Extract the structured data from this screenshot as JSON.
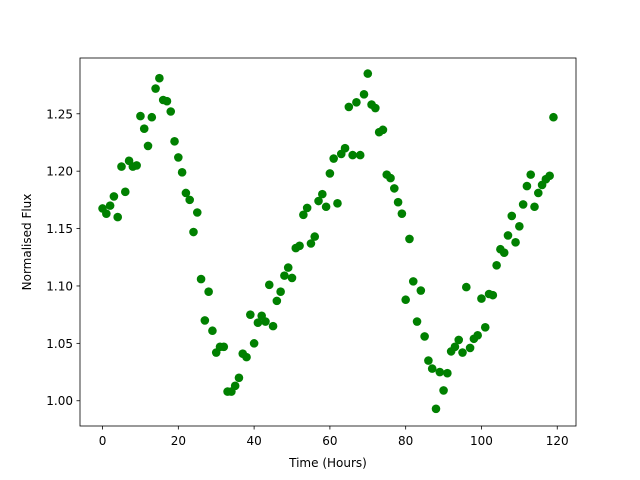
{
  "chart_data": {
    "type": "scatter",
    "x_label": "Time (Hours)",
    "y_label": "Normalised Flux",
    "color": "#008000",
    "grid": false,
    "xlim": [
      -5.95,
      124.95
    ],
    "ylim": [
      0.978,
      1.2986
    ],
    "xticks": [
      0,
      20,
      40,
      60,
      80,
      100,
      120
    ],
    "yticks": [
      {
        "value": 1,
        "label": "1.00"
      },
      1.05,
      {
        "value": 1.1,
        "label": "1.10"
      },
      1.15,
      {
        "value": 1.2,
        "label": "1.20"
      },
      1.25
    ],
    "x": [
      0,
      1,
      2,
      3,
      4,
      5,
      6,
      7,
      8,
      9,
      10,
      11,
      12,
      13,
      14,
      15,
      16,
      17,
      18,
      19,
      20,
      21,
      22,
      23,
      24,
      25,
      26,
      27,
      28,
      29,
      30,
      31,
      32,
      33,
      34,
      35,
      36,
      37,
      38,
      39,
      40,
      41,
      42,
      43,
      44,
      45,
      46,
      47,
      48,
      49,
      50,
      51,
      52,
      53,
      54,
      55,
      56,
      57,
      58,
      59,
      60,
      61,
      62,
      63,
      64,
      65,
      66,
      67,
      68,
      69,
      70,
      71,
      72,
      73,
      74,
      75,
      76,
      77,
      78,
      79,
      80,
      81,
      82,
      83,
      84,
      85,
      86,
      87,
      88,
      89,
      90,
      91,
      92,
      93,
      94,
      95,
      96,
      97,
      98,
      99,
      100,
      101,
      102,
      103,
      104,
      105,
      106,
      107,
      108,
      109,
      110,
      111,
      112,
      113,
      114,
      115,
      116,
      117,
      118,
      119
    ],
    "values": [
      1.1675,
      1.163,
      1.17,
      1.178,
      1.16,
      1.204,
      1.182,
      1.209,
      1.204,
      1.205,
      1.248,
      1.237,
      1.222,
      1.247,
      1.272,
      1.281,
      1.262,
      1.261,
      1.252,
      1.226,
      1.212,
      1.199,
      1.181,
      1.175,
      1.147,
      1.164,
      1.106,
      1.07,
      1.095,
      1.061,
      1.042,
      1.047,
      1.047,
      1.008,
      1.008,
      1.013,
      1.02,
      1.041,
      1.038,
      1.075,
      1.05,
      1.068,
      1.074,
      1.069,
      1.101,
      1.065,
      1.087,
      1.095,
      1.109,
      1.116,
      1.107,
      1.133,
      1.135,
      1.162,
      1.168,
      1.137,
      1.143,
      1.174,
      1.18,
      1.169,
      1.198,
      1.211,
      1.172,
      1.215,
      1.22,
      1.256,
      1.214,
      1.26,
      1.214,
      1.267,
      1.285,
      1.258,
      1.255,
      1.234,
      1.236,
      1.197,
      1.194,
      1.185,
      1.173,
      1.163,
      1.088,
      1.141,
      1.104,
      1.069,
      1.096,
      1.056,
      1.035,
      1.028,
      0.993,
      1.025,
      1.009,
      1.024,
      1.043,
      1.047,
      1.053,
      1.042,
      1.099,
      1.046,
      1.054,
      1.057,
      1.089,
      1.064,
      1.093,
      1.092,
      1.118,
      1.132,
      1.129,
      1.144,
      1.161,
      1.138,
      1.152,
      1.171,
      1.187,
      1.197,
      1.169,
      1.181,
      1.188,
      1.193,
      1.196,
      1.247
    ]
  }
}
